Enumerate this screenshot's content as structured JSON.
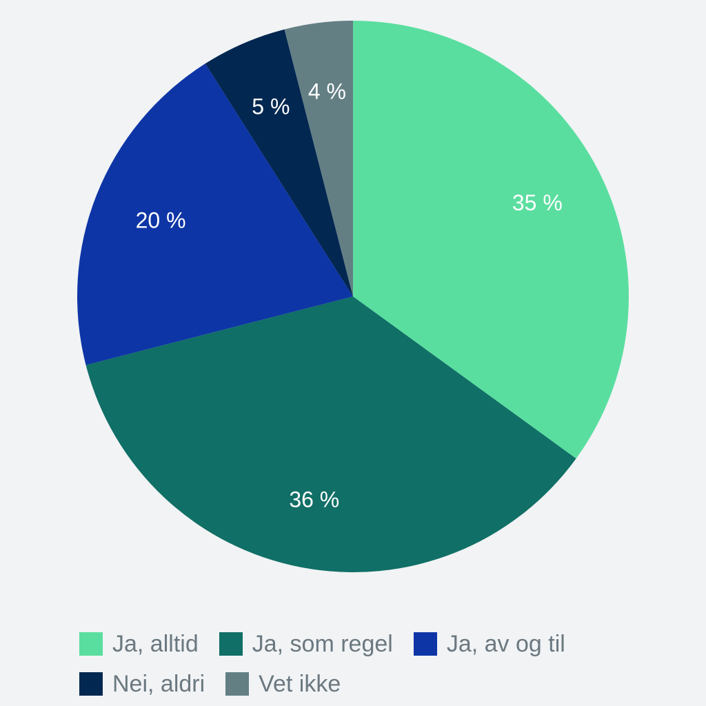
{
  "chart_data": {
    "type": "pie",
    "slices": [
      {
        "name": "Ja, alltid",
        "value": 35,
        "label": "35 %",
        "color": "#5ade9f"
      },
      {
        "name": "Ja, som regel",
        "value": 36,
        "label": "36 %",
        "color": "#106f66"
      },
      {
        "name": "Ja, av og til",
        "value": 20,
        "label": "20 %",
        "color": "#0d35a6"
      },
      {
        "name": "Nei, aldri",
        "value": 5,
        "label": "5 %",
        "color": "#022751"
      },
      {
        "name": "Vet ikke",
        "value": 4,
        "label": "4 %",
        "color": "#637f84"
      }
    ],
    "legend_position": "bottom",
    "start": "top, clockwise"
  },
  "colors": {
    "background": "#f1f3f5",
    "label_text": "#ffffff",
    "legend_text": "#6b7880"
  }
}
